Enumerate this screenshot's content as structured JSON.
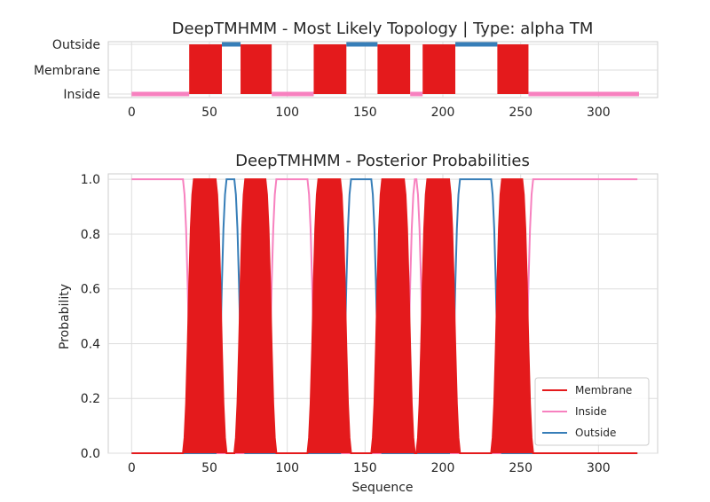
{
  "chart_data": [
    {
      "type": "line",
      "title": "DeepTMHMM - Most Likely Topology | Type: alpha TM",
      "xlabel": "",
      "ylabel": "",
      "xlim": [
        -15,
        338
      ],
      "x_ticks": [
        0,
        50,
        100,
        150,
        200,
        250,
        300
      ],
      "y_categories": [
        "Outside",
        "Membrane",
        "Inside"
      ],
      "grid": true,
      "colors": {
        "Membrane": "#e41a1c",
        "Inside": "#f781bf",
        "Outside": "#377eb8"
      },
      "segments": [
        {
          "state": "Inside",
          "start": 0,
          "end": 37
        },
        {
          "state": "Membrane",
          "start": 37,
          "end": 58
        },
        {
          "state": "Outside",
          "start": 58,
          "end": 70
        },
        {
          "state": "Membrane",
          "start": 70,
          "end": 90
        },
        {
          "state": "Inside",
          "start": 90,
          "end": 117
        },
        {
          "state": "Membrane",
          "start": 117,
          "end": 138
        },
        {
          "state": "Outside",
          "start": 138,
          "end": 158
        },
        {
          "state": "Membrane",
          "start": 158,
          "end": 179
        },
        {
          "state": "Inside",
          "start": 179,
          "end": 187
        },
        {
          "state": "Membrane",
          "start": 187,
          "end": 208
        },
        {
          "state": "Outside",
          "start": 208,
          "end": 235
        },
        {
          "state": "Membrane",
          "start": 235,
          "end": 255
        },
        {
          "state": "Inside",
          "start": 255,
          "end": 326
        }
      ]
    },
    {
      "type": "line",
      "title": "DeepTMHMM - Posterior Probabilities",
      "xlabel": "Sequence",
      "ylabel": "Probability",
      "xlim": [
        -15,
        338
      ],
      "ylim": [
        0.0,
        1.02
      ],
      "x_ticks": [
        0,
        50,
        100,
        150,
        200,
        250,
        300
      ],
      "y_ticks": [
        0.0,
        0.2,
        0.4,
        0.6,
        0.8,
        1.0
      ],
      "grid": true,
      "legend_position": "bottom-right",
      "series": [
        {
          "name": "Membrane",
          "color": "#e41a1c"
        },
        {
          "name": "Inside",
          "color": "#f781bf"
        },
        {
          "name": "Outside",
          "color": "#377eb8"
        }
      ],
      "sequence_length": 326
    }
  ]
}
